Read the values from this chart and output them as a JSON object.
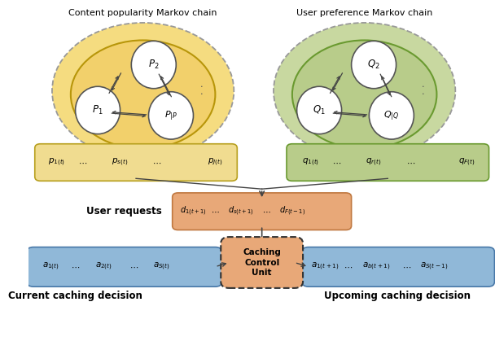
{
  "title_left": "Content popularity Markov chain",
  "title_right": "User preference Markov chain",
  "label_current": "Current caching decision",
  "label_upcoming": "Upcoming caching decision",
  "label_user_requests": "User requests",
  "yellow_fill": "#F2D06B",
  "yellow_outer_fill": "#F5DC80",
  "yellow_edge": "#B8960A",
  "green_fill": "#B8CC8A",
  "green_outer_fill": "#C8D8A0",
  "green_edge": "#6A9A30",
  "p_bar_fill": "#F0DC90",
  "p_bar_edge": "#B8A020",
  "q_bar_fill": "#B8CC8A",
  "q_bar_edge": "#6A9A30",
  "d_bar_fill": "#E8A878",
  "d_bar_edge": "#C07840",
  "a_bar_fill": "#90B8D8",
  "a_bar_edge": "#4878A8",
  "ccu_fill": "#E8A878",
  "ccu_edge": "#333333",
  "arrow_color": "#444444",
  "bg_color": "#FFFFFF",
  "node_fill": "#FFFFFF",
  "node_edge": "#555555"
}
